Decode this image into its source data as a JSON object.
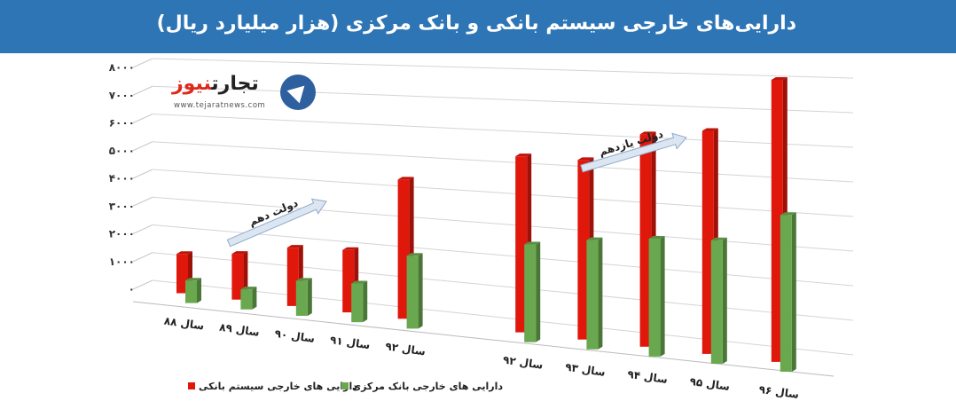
{
  "header": {
    "title": "دارایی‌های خارجی سیستم بانکی و بانک مرکزی (هزار میلیارد ریال)"
  },
  "logo": {
    "brand_part1": "تجارت",
    "brand_part2": "نیوز",
    "url": "www.tejaratnews.com"
  },
  "annotations": {
    "left_arrow": "دولت دهم",
    "right_arrow": "دولت یازدهم"
  },
  "colors": {
    "header": "#2e75b6",
    "banking_system": "#e0180c",
    "central_bank": "#6aa84f"
  },
  "chart_data": {
    "type": "bar",
    "title": "دارایی‌های خارجی سیستم بانکی و بانک مرکزی (هزار میلیارد ریال)",
    "categories": [
      "سال ۸۸",
      "سال ۸۹",
      "سال ۹۰",
      "سال ۹۱",
      "سال ۹۲",
      "سال ۹۲",
      "سال ۹۳",
      "سال ۹۴",
      "سال ۹۵",
      "سال ۹۶"
    ],
    "series": [
      {
        "name": "دارایی های خارجی سیستم بانکی",
        "values": [
          1400,
          1600,
          2000,
          2100,
          4600,
          5600,
          5600,
          6500,
          6700,
          8300
        ]
      },
      {
        "name": "دارایی های خارجی بانک مرکزی",
        "values": [
          800,
          700,
          1200,
          1300,
          2400,
          3100,
          3400,
          3600,
          3700,
          4600
        ]
      }
    ],
    "yticks": [
      "۰",
      "۱۰۰۰",
      "۲۰۰۰",
      "۳۰۰۰",
      "۴۰۰۰",
      "۵۰۰۰",
      "۶۰۰۰",
      "۷۰۰۰",
      "۸۰۰۰"
    ],
    "ylim": [
      0,
      8000
    ],
    "grid": true,
    "legend": "bottom-left"
  }
}
